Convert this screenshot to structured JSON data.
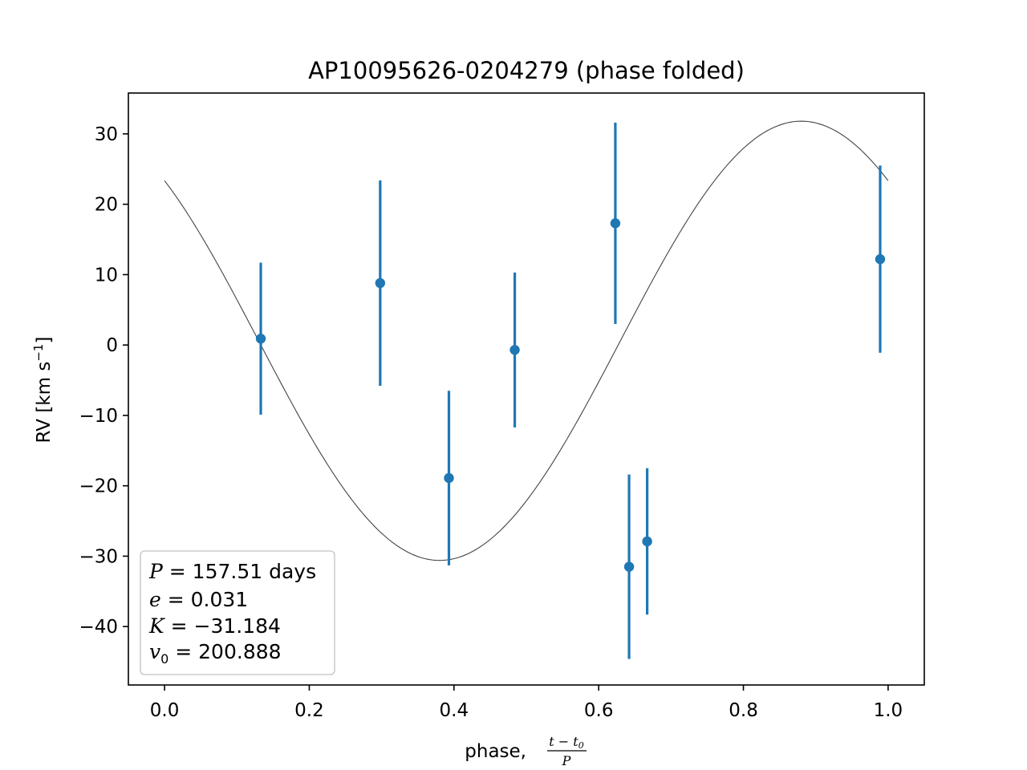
{
  "chart_data": {
    "type": "scatter",
    "title": "AP10095626-0204279 (phase folded)",
    "xlabel": "phase, ",
    "xlabel_fraction": {
      "numerator": "t − t",
      "numerator_sub": "0",
      "denominator": "P"
    },
    "ylabel": "RV [km s",
    "ylabel_sup": "−1",
    "ylabel_end": "]",
    "xlim": [
      -0.05,
      1.05
    ],
    "ylim": [
      -48.3,
      35.8
    ],
    "xticks": [
      0.0,
      0.2,
      0.4,
      0.6,
      0.8,
      1.0
    ],
    "xtick_labels": [
      "0.0",
      "0.2",
      "0.4",
      "0.6",
      "0.8",
      "1.0"
    ],
    "yticks": [
      -40,
      -30,
      -20,
      -10,
      0,
      10,
      20,
      30
    ],
    "ytick_labels": [
      "−40",
      "−30",
      "−20",
      "−10",
      "0",
      "10",
      "20",
      "30"
    ],
    "points": [
      {
        "x": 0.133,
        "y": 0.9,
        "err": 10.8
      },
      {
        "x": 0.298,
        "y": 8.8,
        "err": 14.6
      },
      {
        "x": 0.393,
        "y": -18.9,
        "err": 12.4
      },
      {
        "x": 0.484,
        "y": -0.7,
        "err": 11.0
      },
      {
        "x": 0.623,
        "y": 17.3,
        "err": 14.3
      },
      {
        "x": 0.642,
        "y": -31.5,
        "err": 13.1
      },
      {
        "x": 0.667,
        "y": -27.9,
        "err": 10.4
      },
      {
        "x": 0.989,
        "y": 12.2,
        "err": 13.3
      }
    ],
    "model": {
      "type": "sinusoid",
      "amplitude": 31.2,
      "offset": 0.6,
      "phase_of_max": 0.88,
      "x_range": [
        0.0,
        1.0
      ]
    },
    "legend": {
      "placement": "lower-left",
      "entries": [
        {
          "symbol": "P",
          "value": " = 157.51 days"
        },
        {
          "symbol": "e",
          "value": " = 0.031"
        },
        {
          "symbol": "K",
          "value": " = −31.184"
        },
        {
          "symbol": "v",
          "sub": "0",
          "value": " = 200.888"
        }
      ]
    },
    "colors": {
      "points": "#1f77b4",
      "model": "#444444",
      "axes": "#000000",
      "legend_border": "#cccccc"
    },
    "grid": false
  }
}
